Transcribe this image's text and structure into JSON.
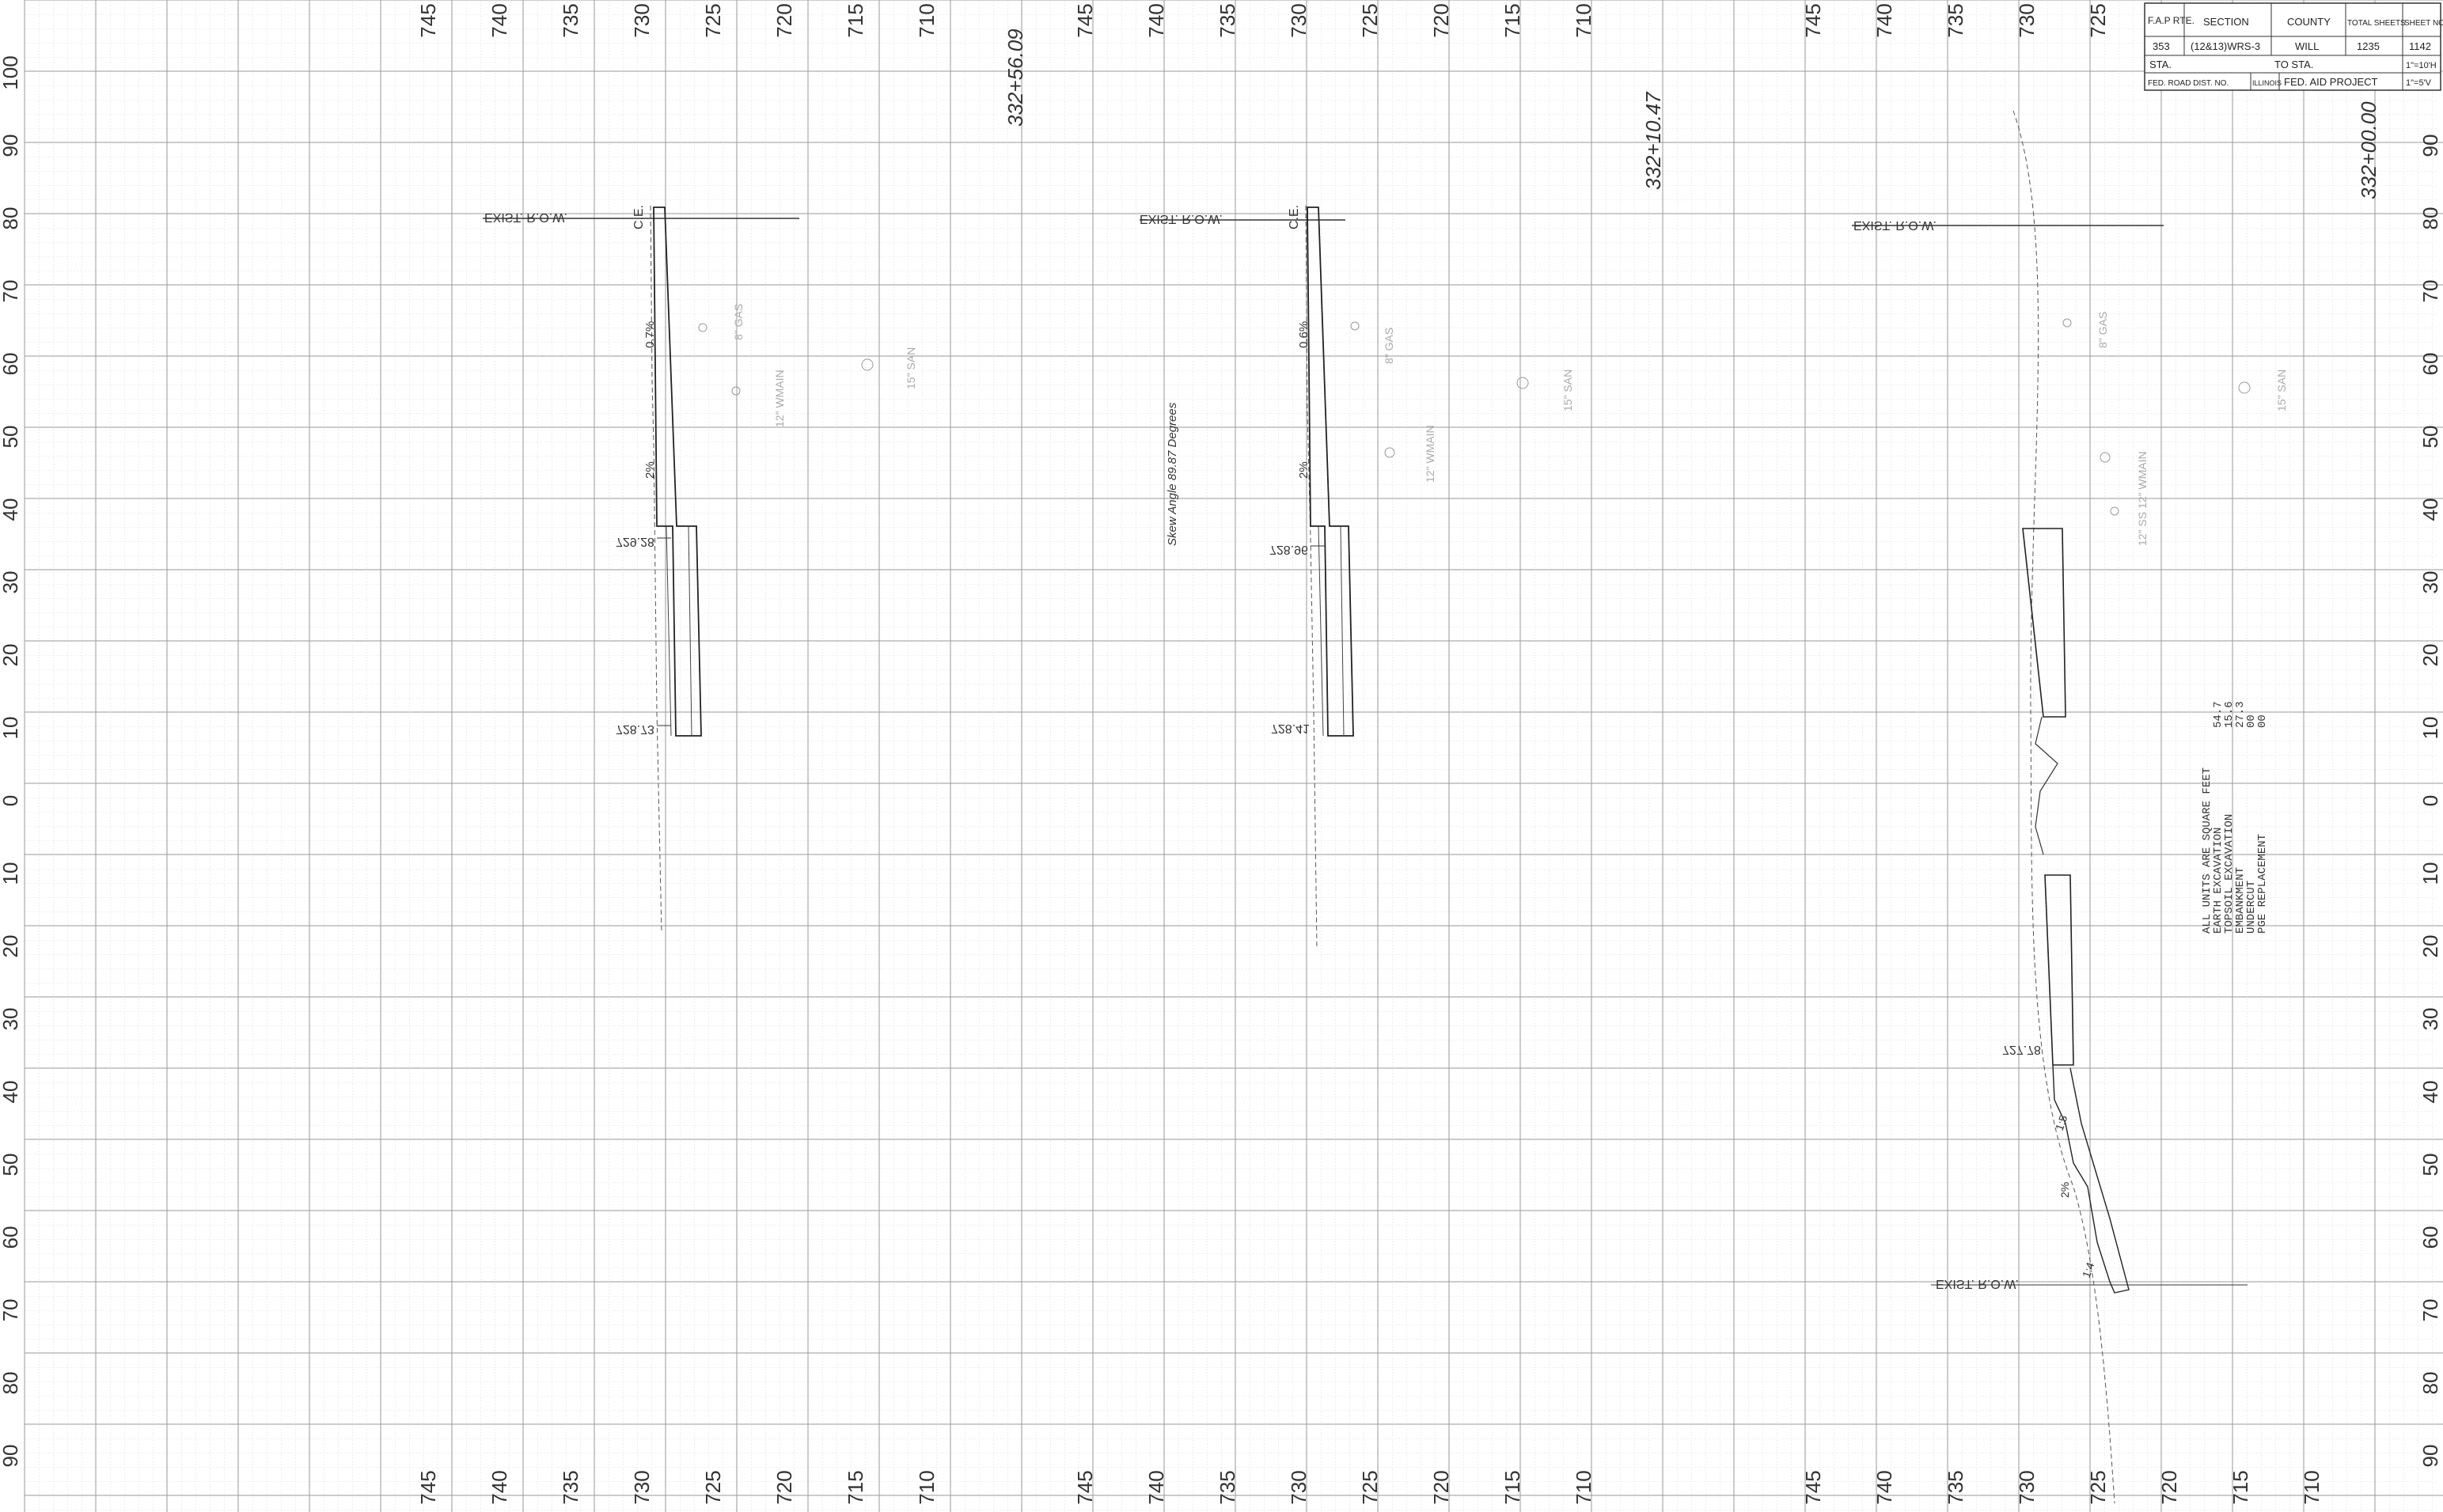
{
  "title_block": {
    "row1": [
      "F.A.P RTE.",
      "SECTION",
      "COUNTY",
      "TOTAL SHEETS",
      "SHEET NO."
    ],
    "row2": [
      "353",
      "(12&13)WRS-3",
      "WILL",
      "1235",
      "1142"
    ],
    "sta_label": "STA.",
    "to_sta_label": "TO STA.",
    "scale_h": "1\"=10'H",
    "fed_road_dist": "FED. ROAD DIST. NO.",
    "state": "ILLINOIS",
    "fed_aid_project": "FED. AID PROJECT",
    "scale_v": "1\"=5'V"
  },
  "offset_labels": [
    "100",
    "90",
    "80",
    "70",
    "60",
    "50",
    "40",
    "30",
    "20",
    "10",
    "0",
    "10",
    "20",
    "30",
    "40",
    "50",
    "60",
    "70",
    "80",
    "90"
  ],
  "elevation_labels": [
    "745",
    "740",
    "735",
    "730",
    "725",
    "720",
    "715",
    "710"
  ],
  "sections": [
    {
      "station": "332+56.09",
      "row_label": "EXIST. R.O.W.",
      "ce_label": "C.E.",
      "slope_top": "0.7%",
      "slope_mid": "2%",
      "elev_upper": "729.28",
      "elev_lower": "728.73",
      "skew_note": "",
      "utilities": [
        "8\" GAS",
        "12\" WMAIN",
        "15\" SAN"
      ]
    },
    {
      "station": "332+10.47",
      "row_label": "EXIST. R.O.W.",
      "ce_label": "C.E.",
      "slope_top": "0.6%",
      "slope_mid": "2%",
      "elev_upper": "728.96",
      "elev_lower": "728.41",
      "skew_note": "Skew Angle 89.87 Degrees",
      "utilities": [
        "8\" GAS",
        "12\" WMAIN",
        "15\" SAN"
      ]
    },
    {
      "station": "332+00.00",
      "row_label": "EXIST. R.O.W.",
      "row_label_lower": "EXIST. R.O.W.",
      "elev_lower": "727.78",
      "slope_a": "1:5",
      "slope_b": "2%",
      "slope_c": "1:4",
      "utilities": [
        "8\" GAS",
        "12\" SS 12\" WMAIN",
        "15\" SAN"
      ]
    }
  ],
  "quantities": {
    "header": "ALL UNITS ARE SQUARE FEET",
    "items": [
      {
        "label": "EARTH EXCAVATION",
        "value": "54.7"
      },
      {
        "label": "TOPSOIL EXCAVATION",
        "value": "15.6"
      },
      {
        "label": "EMBANKMENT",
        "value": "27.3"
      },
      {
        "label": "UNDERCUT",
        "value": "00"
      },
      {
        "label": "PGE REPLACEMENT",
        "value": "00"
      }
    ]
  }
}
